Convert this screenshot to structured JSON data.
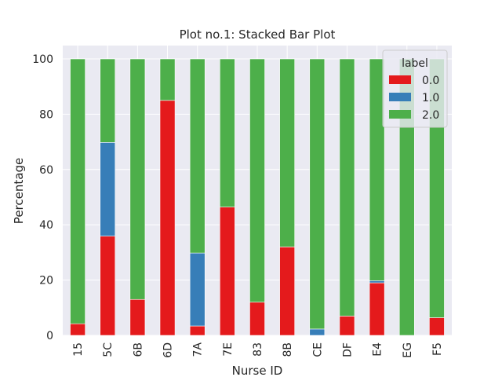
{
  "chart_data": {
    "type": "bar",
    "stacked": true,
    "title": "Plot no.1: Stacked Bar Plot",
    "xlabel": "Nurse ID",
    "ylabel": "Percentage",
    "ylim": [
      0,
      100
    ],
    "yticks": [
      0,
      20,
      40,
      60,
      80,
      100
    ],
    "grid": true,
    "legend_title": "label",
    "legend_position": "top-right",
    "categories": [
      "15",
      "5C",
      "6B",
      "6D",
      "7A",
      "7E",
      "83",
      "8B",
      "CE",
      "DF",
      "E4",
      "EG",
      "F5"
    ],
    "series": [
      {
        "name": "0.0",
        "color": "#e41a1c",
        "values": [
          4.2,
          35.9,
          13.0,
          85.0,
          3.4,
          46.4,
          12.0,
          32.0,
          0.0,
          7.0,
          19.0,
          0.0,
          6.4
        ]
      },
      {
        "name": "1.0",
        "color": "#377eb8",
        "values": [
          0.0,
          33.9,
          0.0,
          0.0,
          26.4,
          0.0,
          0.0,
          0.0,
          2.3,
          0.0,
          0.8,
          0.0,
          0.0
        ]
      },
      {
        "name": "2.0",
        "color": "#4daf4a",
        "values": [
          95.8,
          30.2,
          87.0,
          15.0,
          70.2,
          53.6,
          88.0,
          68.0,
          97.7,
          93.0,
          80.2,
          100.0,
          93.6
        ]
      }
    ]
  },
  "colors": {
    "plot_background": "#eaeaf2",
    "grid": "#ffffff"
  }
}
